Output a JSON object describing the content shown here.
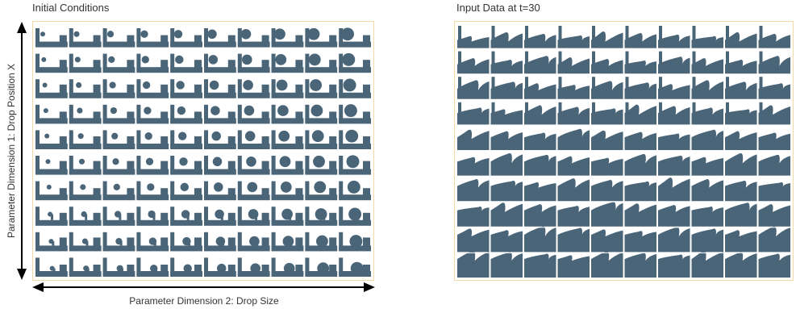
{
  "figure": {
    "left_title": "Initial Conditions",
    "right_title": "Input Data at t=30",
    "y_axis_label": "Parameter Dimension 1: Drop Position X",
    "x_axis_label": "Parameter Dimension 2: Drop Size"
  },
  "grid": {
    "rows": 10,
    "cols": 10
  },
  "colors": {
    "fluid": "#4a6478",
    "border": "#f3d9a8",
    "axis": "#000000"
  }
}
